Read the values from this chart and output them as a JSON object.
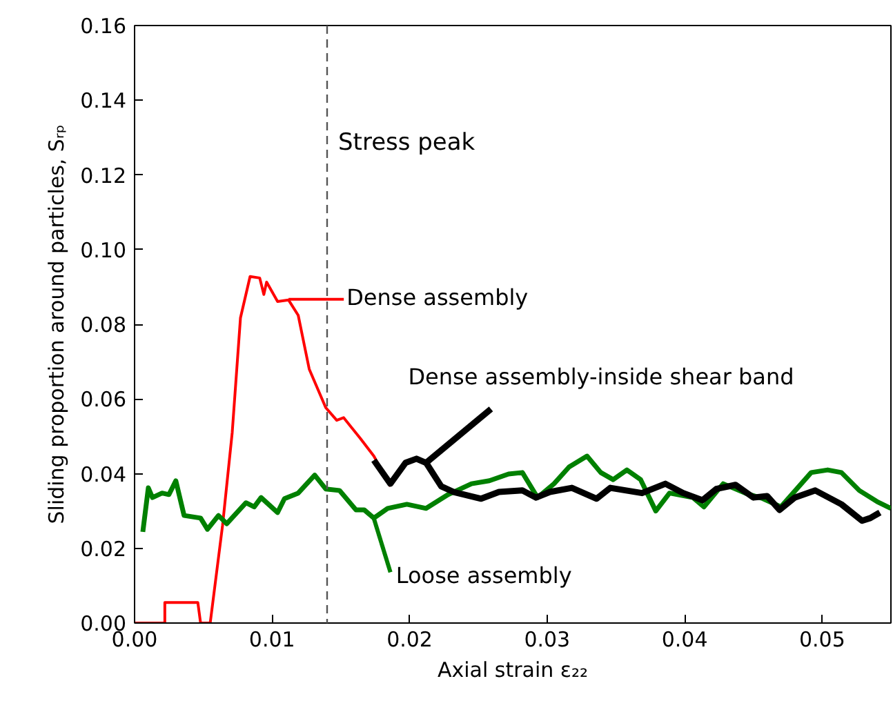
{
  "chart_data": {
    "type": "line",
    "xlabel": "Axial strain ε₂₂",
    "ylabel": "Sliding proportion around particles, Sᵣₚ",
    "xlim": [
      0,
      0.055
    ],
    "ylim": [
      0,
      0.16
    ],
    "xticks": [
      {
        "value": 0,
        "label": "0.00"
      },
      {
        "value": 0.01,
        "label": "0.01"
      },
      {
        "value": 0.02,
        "label": "0.02"
      },
      {
        "value": 0.03,
        "label": "0.03"
      },
      {
        "value": 0.04,
        "label": "0.04"
      },
      {
        "value": 0.05,
        "label": "0.05"
      }
    ],
    "yticks": [
      {
        "value": 0,
        "label": "0.00"
      },
      {
        "value": 0.02,
        "label": "0.02"
      },
      {
        "value": 0.04,
        "label": "0.04"
      },
      {
        "value": 0.06,
        "label": "0.06"
      },
      {
        "value": 0.08,
        "label": "0.08"
      },
      {
        "value": 0.1,
        "label": "0.10"
      },
      {
        "value": 0.12,
        "label": "0.12"
      },
      {
        "value": 0.14,
        "label": "0.14"
      },
      {
        "value": 0.16,
        "label": "0.16"
      }
    ],
    "grid": false,
    "marker": "none",
    "line_style": "solid",
    "series": [
      {
        "color": "#ff0000",
        "x": [
          0.0,
          0.0022,
          0.0022,
          0.0046,
          0.0048,
          0.0055,
          0.0064,
          0.0071,
          0.0077,
          0.0084,
          0.0091,
          0.0094,
          0.0096,
          0.0104,
          0.0112,
          0.0119,
          0.0127,
          0.0139,
          0.0147,
          0.0152,
          0.0164,
          0.0174,
          0.0186
        ],
        "values": [
          0.0,
          0.0,
          0.0055,
          0.0055,
          0.0,
          0.0,
          0.0262,
          0.051,
          0.0817,
          0.0928,
          0.0924,
          0.088,
          0.0913,
          0.0861,
          0.0865,
          0.0824,
          0.068,
          0.0577,
          0.0543,
          0.055,
          0.0495,
          0.0447,
          0.0366
        ]
      },
      {
        "color": "#008000",
        "x": [
          0.0006,
          0.001,
          0.0013,
          0.002,
          0.0025,
          0.003,
          0.0036,
          0.0048,
          0.0053,
          0.0061,
          0.0067,
          0.0081,
          0.0087,
          0.0092,
          0.0104,
          0.0109,
          0.0119,
          0.0131,
          0.0139,
          0.0149,
          0.0161,
          0.0167,
          0.0174,
          0.0184,
          0.0198,
          0.0212,
          0.0228,
          0.0245,
          0.0258,
          0.0272,
          0.0282,
          0.0293,
          0.0305,
          0.0316,
          0.0329,
          0.0339,
          0.0348,
          0.0358,
          0.0368,
          0.0379,
          0.0389,
          0.0406,
          0.0414,
          0.0428,
          0.0444,
          0.0457,
          0.047,
          0.0492,
          0.0504,
          0.0514,
          0.0527,
          0.054,
          0.055
        ],
        "values": [
          0.0244,
          0.0362,
          0.0336,
          0.0348,
          0.0344,
          0.0381,
          0.0288,
          0.0281,
          0.0251,
          0.0288,
          0.0266,
          0.0322,
          0.0311,
          0.0336,
          0.0296,
          0.0333,
          0.0348,
          0.0396,
          0.0359,
          0.0355,
          0.0303,
          0.0303,
          0.0281,
          0.0307,
          0.0318,
          0.0307,
          0.0344,
          0.0373,
          0.0381,
          0.0399,
          0.0403,
          0.0336,
          0.0373,
          0.0418,
          0.0447,
          0.0403,
          0.0384,
          0.041,
          0.0384,
          0.03,
          0.0348,
          0.0336,
          0.0311,
          0.0373,
          0.0348,
          0.0333,
          0.0311,
          0.0403,
          0.041,
          0.0403,
          0.0355,
          0.0325,
          0.0307
        ]
      },
      {
        "color": "#000000",
        "x": [
          0.0174,
          0.0186,
          0.0197,
          0.0205,
          0.0212,
          0.0223,
          0.0232,
          0.0252,
          0.0265,
          0.0282,
          0.0292,
          0.0302,
          0.0318,
          0.0336,
          0.0346,
          0.0369,
          0.0386,
          0.0399,
          0.0413,
          0.0423,
          0.0437,
          0.045,
          0.046,
          0.0469,
          0.048,
          0.0495,
          0.0514,
          0.0529,
          0.0535,
          0.0542
        ],
        "values": [
          0.0436,
          0.0373,
          0.0429,
          0.044,
          0.0429,
          0.0366,
          0.0351,
          0.0333,
          0.0351,
          0.0355,
          0.0336,
          0.0351,
          0.0362,
          0.0333,
          0.0362,
          0.0348,
          0.0373,
          0.0348,
          0.0329,
          0.0359,
          0.037,
          0.0336,
          0.034,
          0.0303,
          0.0336,
          0.0355,
          0.0318,
          0.0274,
          0.0281,
          0.0296
        ]
      }
    ],
    "ref_lines": [
      {
        "axis": "x",
        "value": 0.014,
        "label": "Stress peak",
        "color": "#555555",
        "line_style": "dashed"
      }
    ],
    "annotations": [
      {
        "text": "Dense assembly",
        "x": 0.0112,
        "y": 0.0867
      },
      {
        "text": "Loose assembly",
        "x": 0.0174,
        "y": 0.028
      },
      {
        "text": "Dense assembly-inside shear band",
        "x": 0.0212,
        "y": 0.0429
      }
    ]
  }
}
